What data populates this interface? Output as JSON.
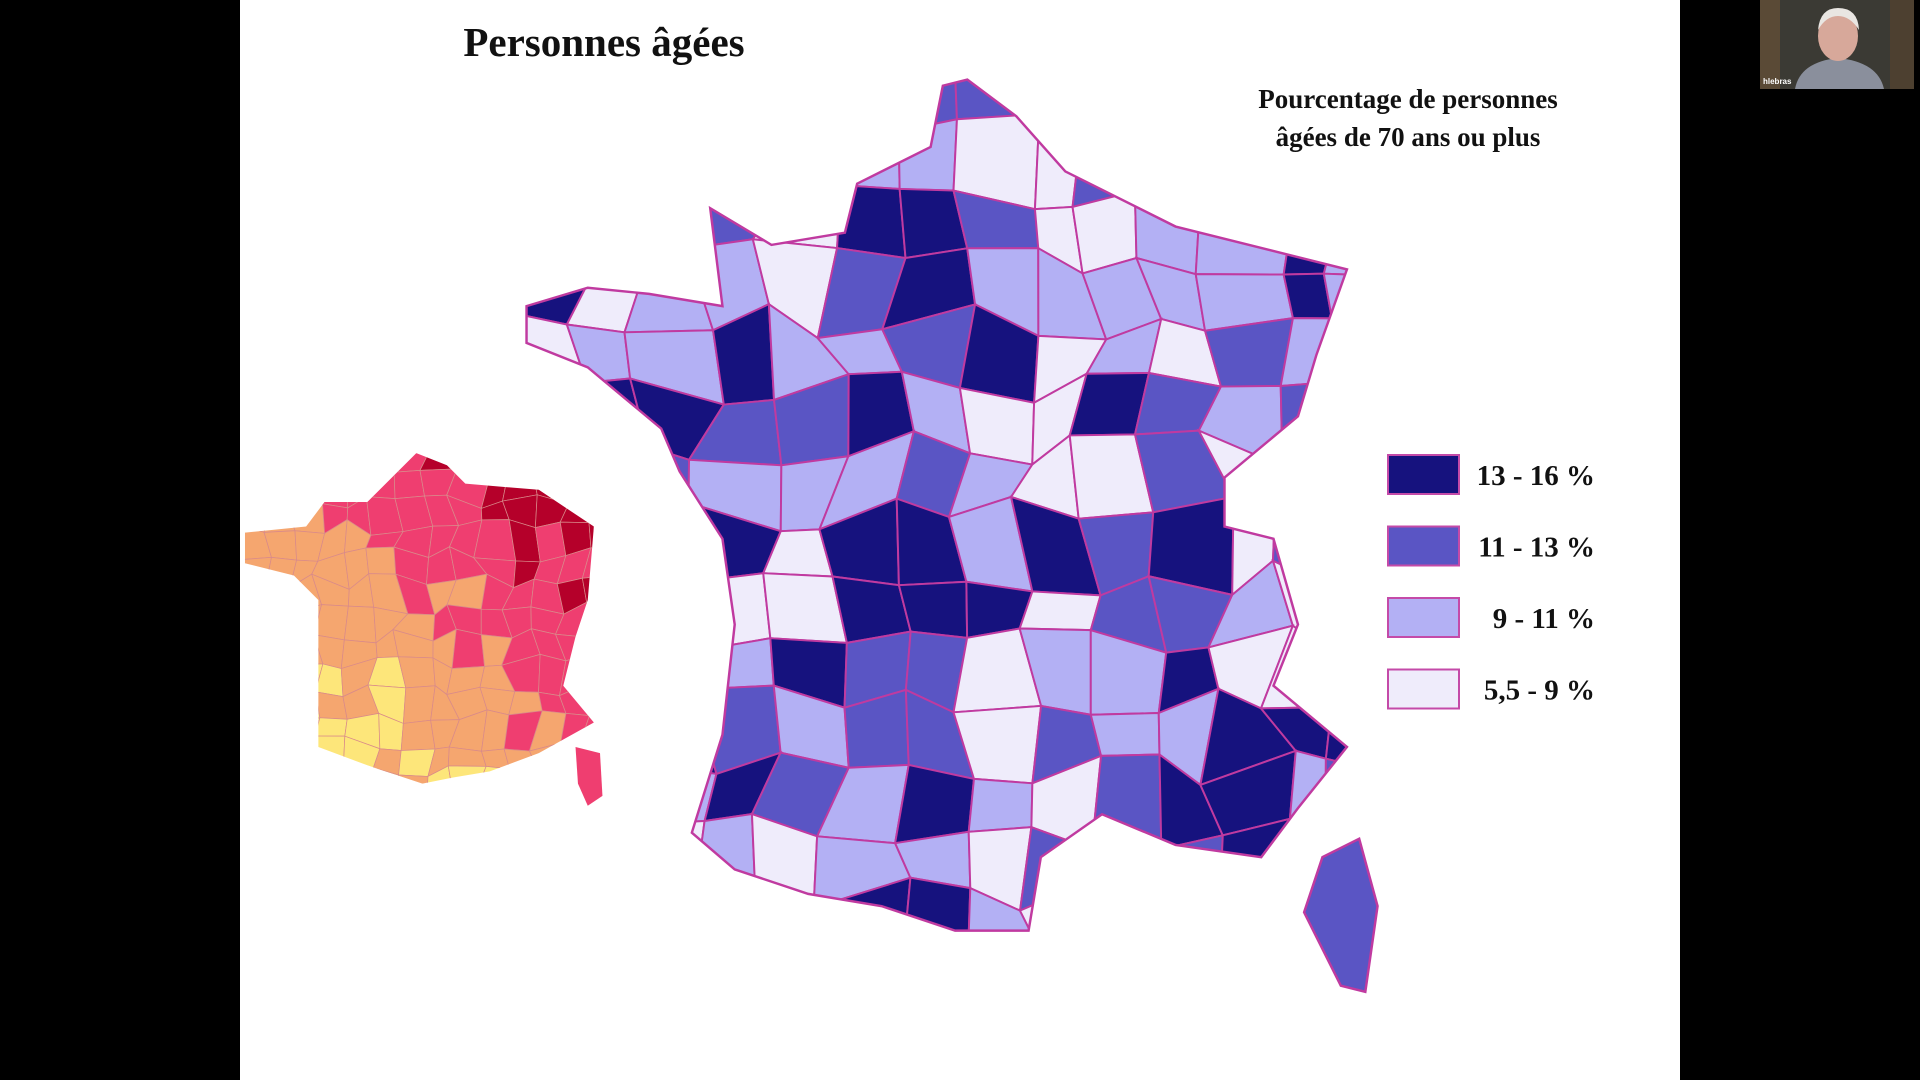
{
  "slide": {
    "title": "Personnes âgées",
    "legend": {
      "title_lines": [
        "Pourcentage de personnes",
        "âgées de 70 ans ou plus"
      ],
      "items": [
        {
          "label": "13 - 16 %",
          "color": "#16127e"
        },
        {
          "label": "11 - 13 %",
          "color": "#5a55c4"
        },
        {
          "label": "9 - 11 %",
          "color": "#b3b0f4"
        },
        {
          "label": "5,5 - 9 %",
          "color": "#efecfb"
        }
      ]
    }
  },
  "participant": {
    "name": "hlebras"
  }
}
